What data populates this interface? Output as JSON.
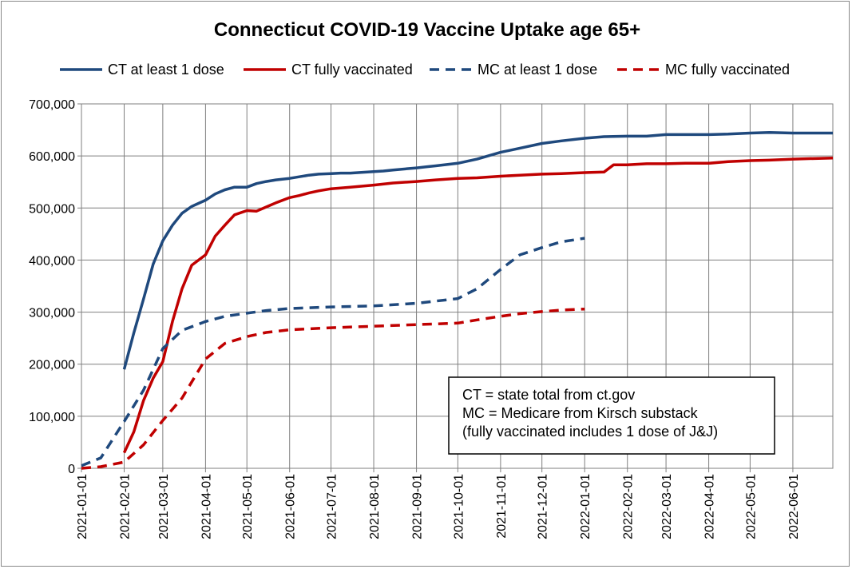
{
  "chart_data": {
    "type": "line",
    "title": "Connecticut COVID-19 Vaccine Uptake age 65+",
    "xlabel": "",
    "ylabel": "",
    "ylim": [
      0,
      700000
    ],
    "yticks": [
      0,
      100000,
      200000,
      300000,
      400000,
      500000,
      600000,
      700000
    ],
    "ytick_labels": [
      "0",
      "100,000",
      "200,000",
      "300,000",
      "400,000",
      "500,000",
      "600,000",
      "700,000"
    ],
    "xlim": [
      "2021-01-01",
      "2022-06-30"
    ],
    "xtick_labels": [
      "2021-01-01",
      "2021-02-01",
      "2021-03-01",
      "2021-04-01",
      "2021-05-01",
      "2021-06-01",
      "2021-07-01",
      "2021-08-01",
      "2021-09-01",
      "2021-10-01",
      "2021-11-01",
      "2021-12-01",
      "2022-01-01",
      "2022-02-01",
      "2022-03-01",
      "2022-04-01",
      "2022-05-01",
      "2022-06-01"
    ],
    "grid": true,
    "legend_position": "top",
    "series": [
      {
        "name": "CT at least 1 dose",
        "color": "#1F497D",
        "dashed": false,
        "x": [
          "2021-02-01",
          "2021-02-08",
          "2021-02-15",
          "2021-02-22",
          "2021-03-01",
          "2021-03-08",
          "2021-03-15",
          "2021-03-22",
          "2021-04-01",
          "2021-04-08",
          "2021-04-15",
          "2021-04-22",
          "2021-05-01",
          "2021-05-08",
          "2021-05-15",
          "2021-05-22",
          "2021-06-01",
          "2021-06-08",
          "2021-06-15",
          "2021-06-22",
          "2021-07-01",
          "2021-07-08",
          "2021-07-15",
          "2021-08-01",
          "2021-08-08",
          "2021-08-15",
          "2021-09-01",
          "2021-09-08",
          "2021-09-15",
          "2021-10-01",
          "2021-10-08",
          "2021-10-15",
          "2021-11-01",
          "2021-11-15",
          "2021-12-01",
          "2021-12-15",
          "2022-01-01",
          "2022-01-15",
          "2022-02-01",
          "2022-02-15",
          "2022-03-01",
          "2022-03-15",
          "2022-04-01",
          "2022-04-15",
          "2022-05-01",
          "2022-05-15",
          "2022-06-01",
          "2022-06-30"
        ],
        "values": [
          190000,
          260000,
          325000,
          392000,
          437000,
          467000,
          490000,
          503000,
          515000,
          527000,
          535000,
          540000,
          540000,
          547000,
          551000,
          554000,
          557000,
          560000,
          563000,
          565000,
          566000,
          567000,
          567000,
          570000,
          571000,
          573000,
          577000,
          579000,
          581000,
          586000,
          590000,
          594000,
          607000,
          615000,
          624000,
          629000,
          634000,
          637000,
          638000,
          638000,
          641000,
          641000,
          641000,
          642000,
          644000,
          645000,
          644000,
          644000
        ]
      },
      {
        "name": "CT fully vaccinated",
        "color": "#C00000",
        "dashed": false,
        "x": [
          "2021-02-01",
          "2021-02-08",
          "2021-02-15",
          "2021-02-22",
          "2021-03-01",
          "2021-03-08",
          "2021-03-15",
          "2021-03-22",
          "2021-04-01",
          "2021-04-08",
          "2021-04-15",
          "2021-04-22",
          "2021-05-01",
          "2021-05-08",
          "2021-05-15",
          "2021-05-22",
          "2021-06-01",
          "2021-06-08",
          "2021-06-15",
          "2021-06-22",
          "2021-07-01",
          "2021-07-15",
          "2021-08-01",
          "2021-08-15",
          "2021-09-01",
          "2021-09-15",
          "2021-10-01",
          "2021-10-15",
          "2021-11-01",
          "2021-11-15",
          "2021-12-01",
          "2021-12-15",
          "2022-01-01",
          "2022-01-15",
          "2022-01-22",
          "2022-02-01",
          "2022-02-15",
          "2022-03-01",
          "2022-03-15",
          "2022-04-01",
          "2022-04-15",
          "2022-05-01",
          "2022-05-15",
          "2022-06-01",
          "2022-06-30"
        ],
        "values": [
          30000,
          70000,
          130000,
          173000,
          205000,
          282000,
          345000,
          390000,
          410000,
          446000,
          467000,
          487000,
          495000,
          494000,
          502000,
          510000,
          520000,
          524000,
          529000,
          533000,
          537000,
          540000,
          544000,
          548000,
          551000,
          554000,
          557000,
          558000,
          561000,
          563000,
          565000,
          566000,
          568000,
          569000,
          583000,
          583000,
          585000,
          585000,
          586000,
          586000,
          589000,
          591000,
          592000,
          594000,
          596000
        ]
      },
      {
        "name": "MC at least 1 dose",
        "color": "#1F497D",
        "dashed": true,
        "x": [
          "2021-01-01",
          "2021-01-15",
          "2021-02-01",
          "2021-02-15",
          "2021-03-01",
          "2021-03-15",
          "2021-04-01",
          "2021-04-15",
          "2021-05-01",
          "2021-05-15",
          "2021-06-01",
          "2021-07-01",
          "2021-08-01",
          "2021-09-01",
          "2021-10-01",
          "2021-10-15",
          "2021-11-01",
          "2021-11-15",
          "2021-12-01",
          "2021-12-15",
          "2022-01-01"
        ],
        "values": [
          5000,
          20000,
          90000,
          150000,
          230000,
          265000,
          282000,
          292000,
          298000,
          303000,
          307000,
          310000,
          312000,
          317000,
          326000,
          345000,
          382000,
          410000,
          424000,
          435000,
          442000
        ]
      },
      {
        "name": "MC fully vaccinated",
        "color": "#C00000",
        "dashed": true,
        "x": [
          "2021-01-01",
          "2021-01-15",
          "2021-02-01",
          "2021-02-15",
          "2021-03-01",
          "2021-03-15",
          "2021-04-01",
          "2021-04-15",
          "2021-05-01",
          "2021-05-15",
          "2021-06-01",
          "2021-07-01",
          "2021-08-01",
          "2021-09-01",
          "2021-10-01",
          "2021-10-15",
          "2021-11-01",
          "2021-11-15",
          "2021-12-01",
          "2021-12-15",
          "2022-01-01"
        ],
        "values": [
          0,
          3000,
          12000,
          45000,
          92000,
          135000,
          210000,
          240000,
          253000,
          261000,
          266000,
          270000,
          273000,
          276000,
          279000,
          285000,
          292000,
          297000,
          301000,
          304000,
          306000
        ]
      }
    ],
    "annotation": {
      "lines": [
        "CT = state total from ct.gov",
        "MC = Medicare from Kirsch substack",
        "(fully vaccinated includes 1 dose of J&J)"
      ]
    }
  }
}
